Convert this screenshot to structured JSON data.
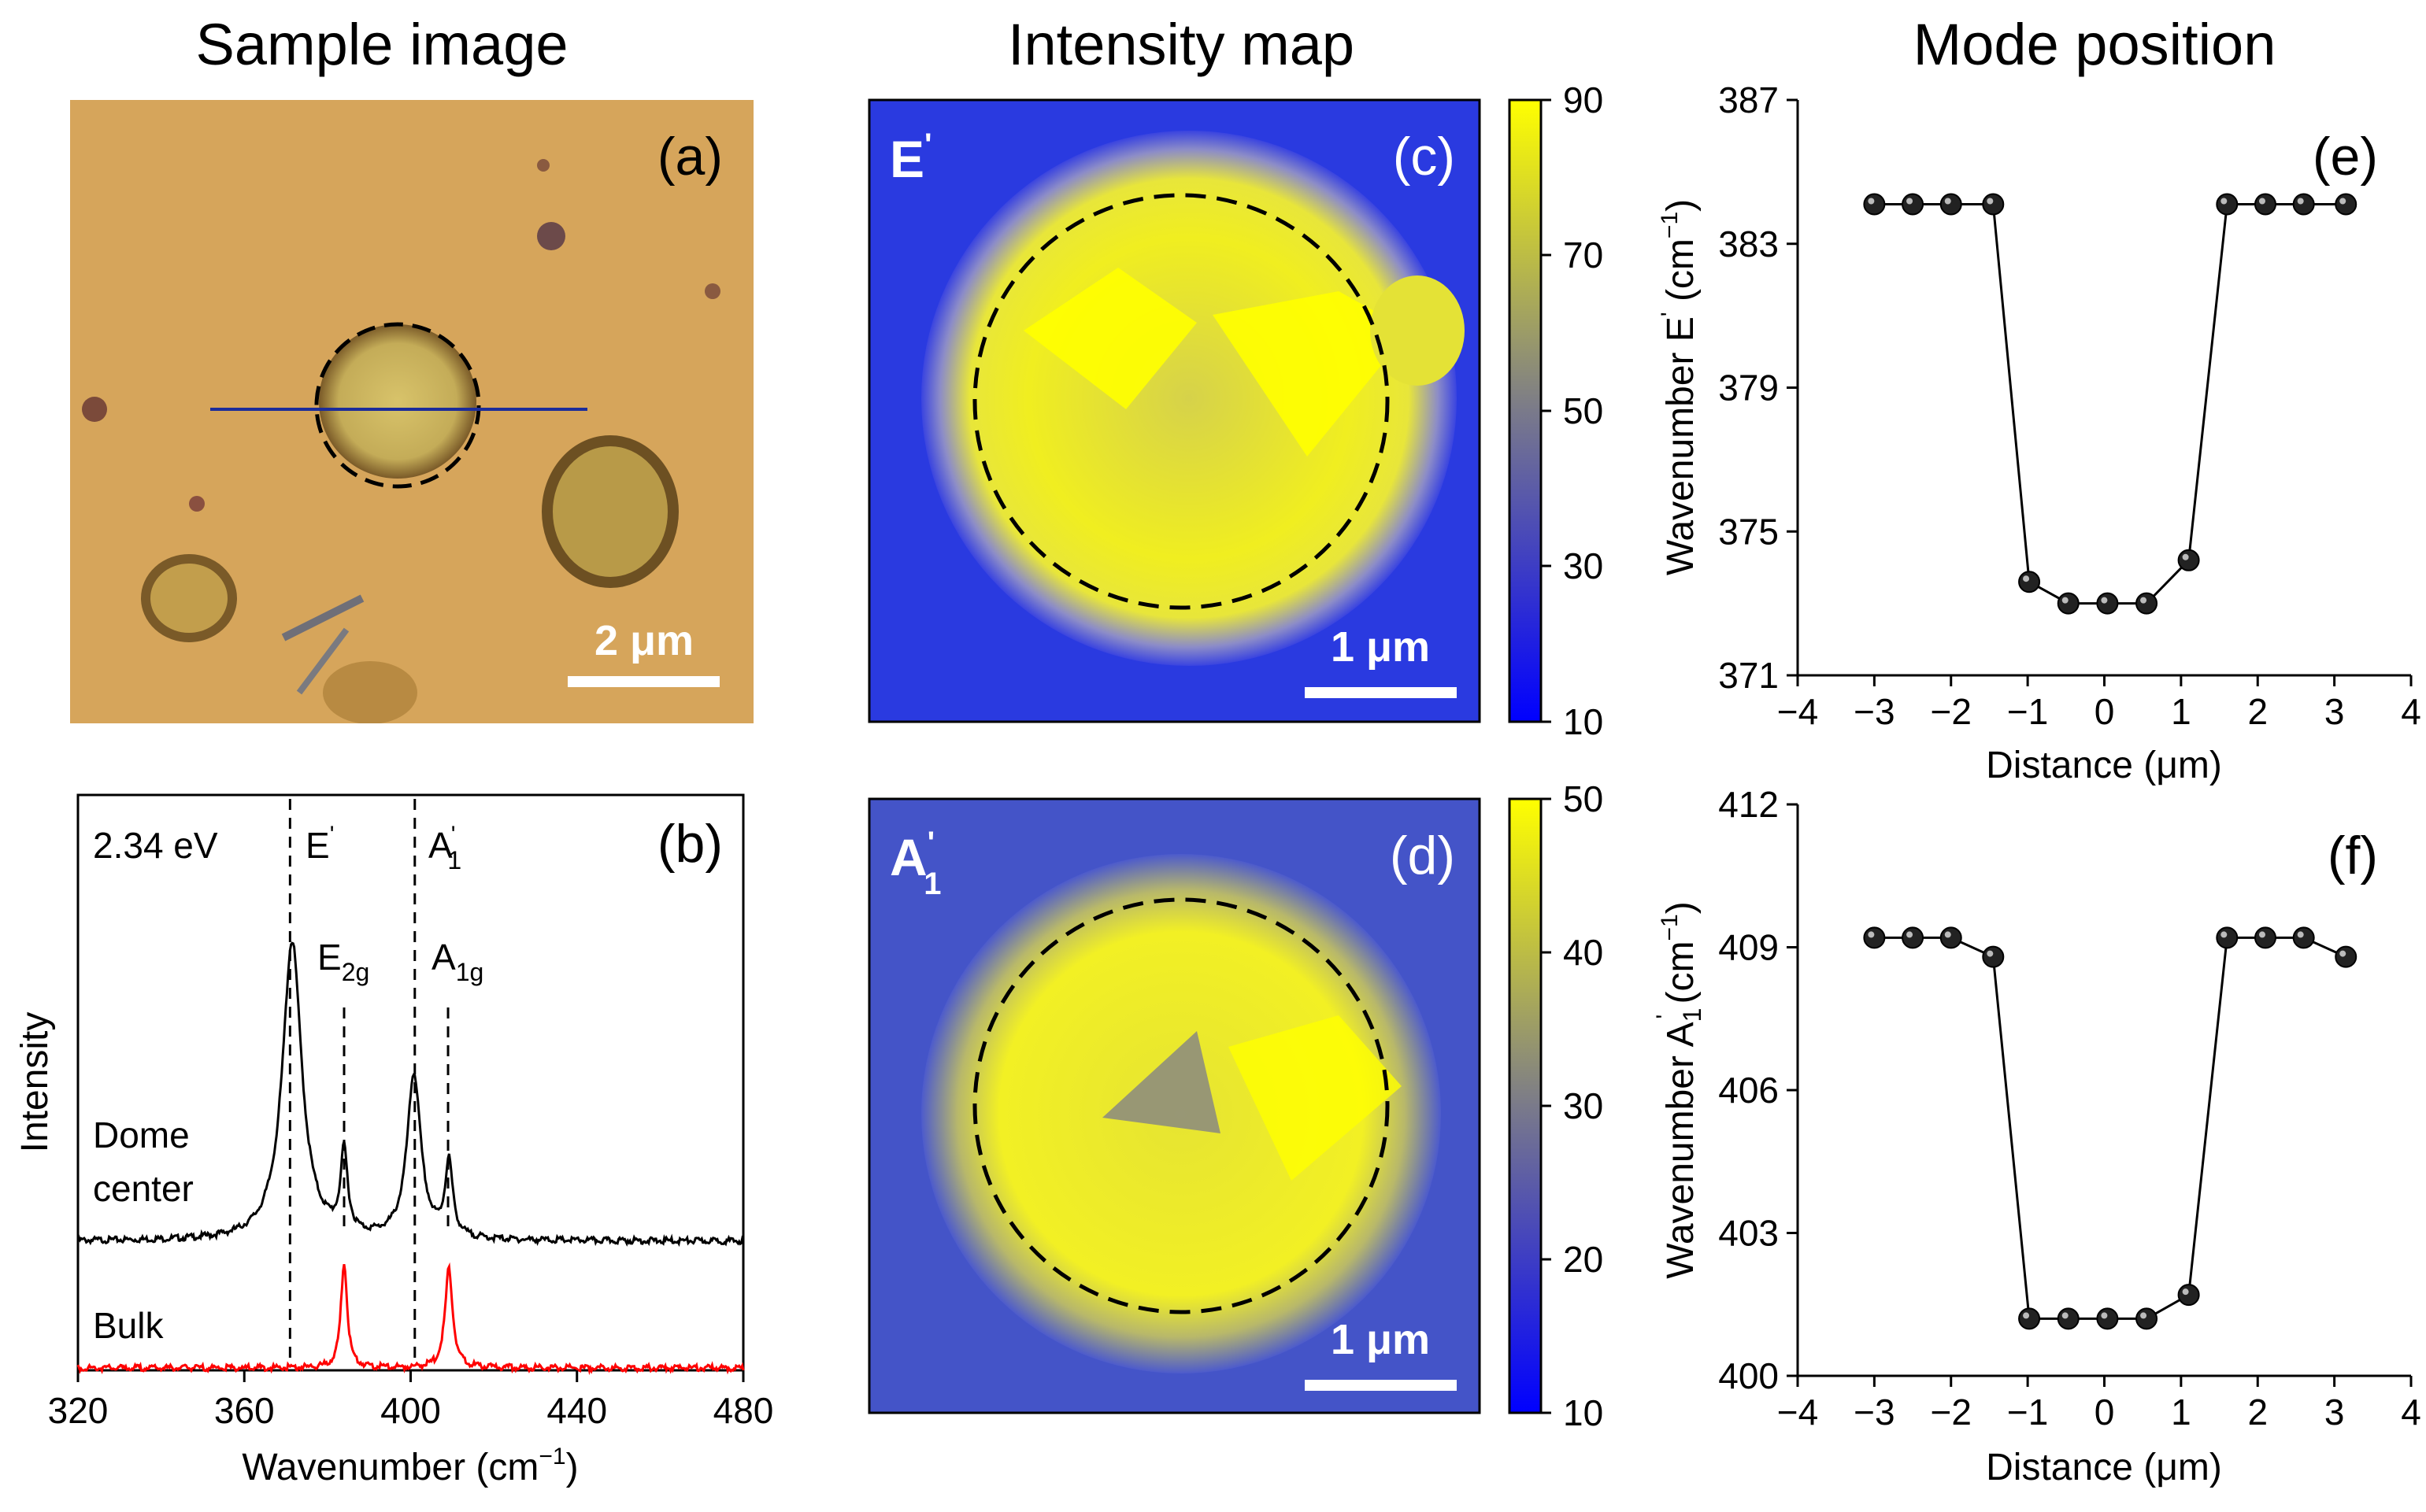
{
  "figure": {
    "headings": [
      "Sample image",
      "Intensity map",
      "Mode position"
    ]
  },
  "panel_a": {
    "label": "(a)",
    "scale_bar": "2 μm",
    "colors": {
      "background": "#d6a55b",
      "line": "#1b2c9a"
    }
  },
  "panel_c": {
    "label": "(c)",
    "mode": "E",
    "mode_sup": "'",
    "scale_bar": "1 μm",
    "colorbar_ticks": [
      "90",
      "70",
      "50",
      "30",
      "10"
    ]
  },
  "panel_d": {
    "label": "(d)",
    "mode": "A",
    "mode_sub": "1",
    "mode_sup": "'",
    "scale_bar": "1 μm",
    "colorbar_ticks": [
      "50",
      "40",
      "30",
      "20",
      "10"
    ]
  },
  "colormap": {
    "low": "#0000ff",
    "mid": "#7a7a8a",
    "high": "#ffff00"
  },
  "chart_data": [
    {
      "panel": "(b)",
      "type": "line",
      "title": "",
      "xlabel": "Wavenumber (cm",
      "xlabel_sup": "−1",
      "xlabel_close": ")",
      "ylabel": "Intensity",
      "xlim": [
        320,
        480
      ],
      "xticks": [
        "320",
        "360",
        "400",
        "440",
        "480"
      ],
      "annotation": "2.34 eV",
      "peak_labels": [
        {
          "base": "E",
          "sup": "'",
          "sub": "",
          "x": 371
        },
        {
          "base": "A",
          "sup": "'",
          "sub": "1",
          "x": 401
        },
        {
          "base": "E",
          "sup": "",
          "sub": "2g",
          "x": 384
        },
        {
          "base": "A",
          "sup": "",
          "sub": "1g",
          "x": 409
        }
      ],
      "series": [
        {
          "name": "Dome center",
          "name_lines": [
            "Dome",
            "center"
          ],
          "color": "#000000",
          "peaks": [
            {
              "x": 371.5,
              "height": 1.0,
              "width": 2.8
            },
            {
              "x": 384,
              "height": 0.27,
              "width": 1.0
            },
            {
              "x": 400.8,
              "height": 0.55,
              "width": 2.0
            },
            {
              "x": 409.2,
              "height": 0.25,
              "width": 1.1
            }
          ]
        },
        {
          "name": "Bulk",
          "name_lines": [
            "Bulk"
          ],
          "color": "#ff0000",
          "peaks": [
            {
              "x": 384,
              "height": 0.45,
              "width": 0.9
            },
            {
              "x": 409.2,
              "height": 0.42,
              "width": 1.1
            }
          ]
        }
      ]
    },
    {
      "panel": "(e)",
      "type": "scatter",
      "xlabel": "Distance (μm)",
      "ylabel": "Wavenumber E",
      "ylabel_sup": "'",
      "ylabel_unit": " (cm",
      "ylabel_unit_sup": "−1",
      "ylabel_close": ")",
      "xlim": [
        -4,
        4
      ],
      "ylim": [
        371,
        387
      ],
      "xticks": [
        "−4",
        "−3",
        "−2",
        "−1",
        "0",
        "1",
        "2",
        "3",
        "4"
      ],
      "yticks": [
        "371",
        "375",
        "379",
        "383",
        "387"
      ],
      "x": [
        -3.0,
        -2.5,
        -2.0,
        -1.45,
        -0.98,
        -0.47,
        0.04,
        0.55,
        1.1,
        1.6,
        2.1,
        2.6,
        3.15
      ],
      "y": [
        384.1,
        384.1,
        384.1,
        384.1,
        373.6,
        373.0,
        373.0,
        373.0,
        374.2,
        384.1,
        384.1,
        384.1,
        384.1
      ]
    },
    {
      "panel": "(f)",
      "type": "scatter",
      "xlabel": "Distance (μm)",
      "ylabel": "Wavenumber A",
      "ylabel_sub": "1",
      "ylabel_sup": "'",
      "ylabel_unit": " (cm",
      "ylabel_unit_sup": "−1",
      "ylabel_close": ")",
      "xlim": [
        -4,
        4
      ],
      "ylim": [
        400,
        412
      ],
      "xticks": [
        "−4",
        "−3",
        "−2",
        "−1",
        "0",
        "1",
        "2",
        "3",
        "4"
      ],
      "yticks": [
        "400",
        "403",
        "406",
        "409",
        "412"
      ],
      "x": [
        -3.0,
        -2.5,
        -2.0,
        -1.45,
        -0.98,
        -0.47,
        0.04,
        0.55,
        1.1,
        1.6,
        2.1,
        2.6,
        3.15
      ],
      "y": [
        409.2,
        409.2,
        409.2,
        408.8,
        401.2,
        401.2,
        401.2,
        401.2,
        401.7,
        409.2,
        409.2,
        409.2,
        408.8
      ]
    }
  ]
}
